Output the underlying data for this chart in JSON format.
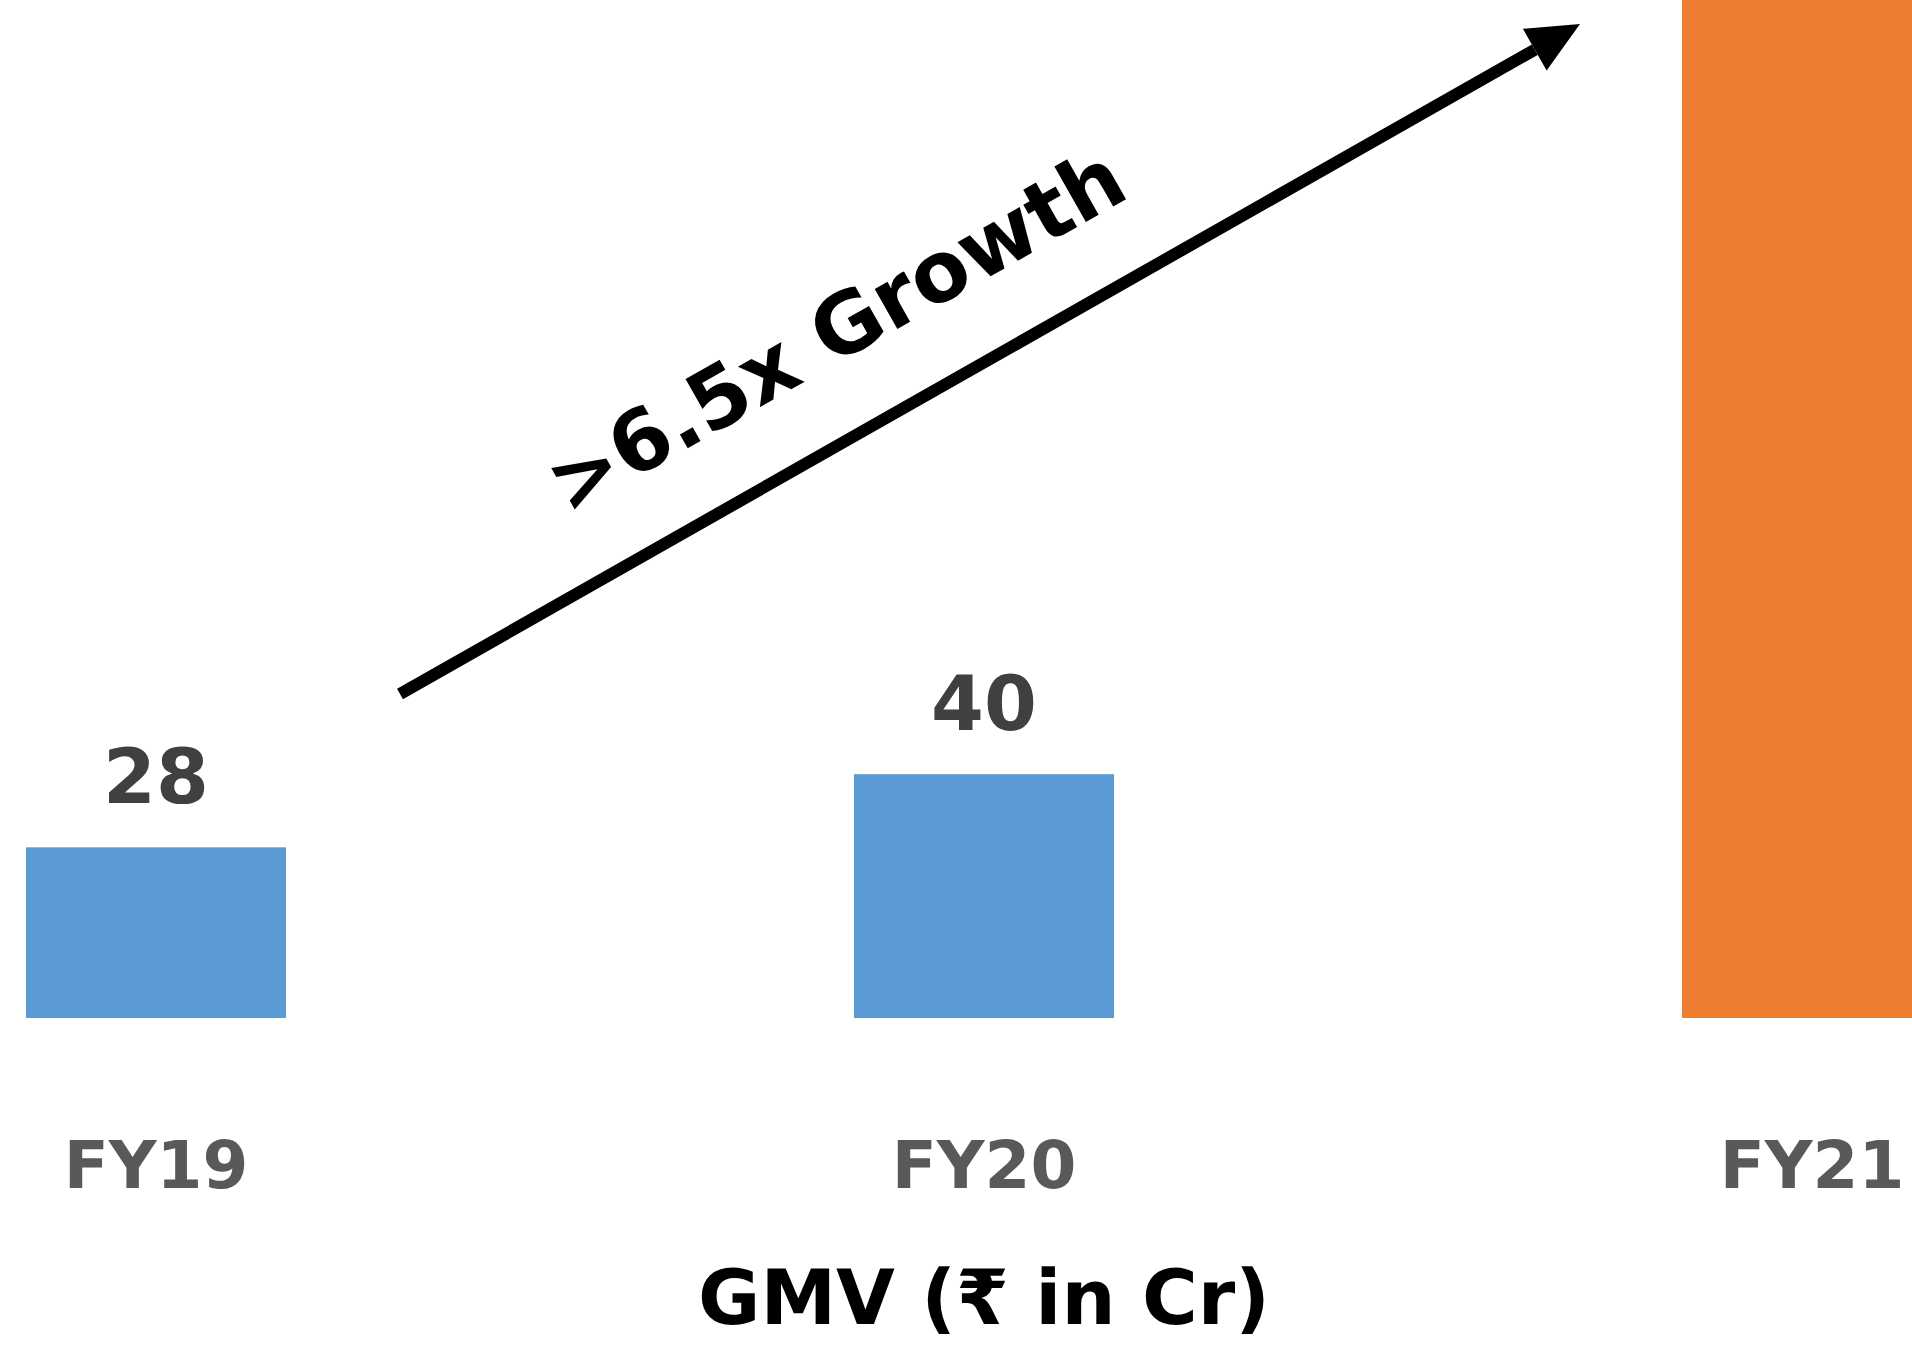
{
  "chart_data": {
    "type": "bar",
    "xlabel": "GMV (₹ in Cr)",
    "categories": [
      "FY19",
      "FY20",
      "FY21"
    ],
    "values": [
      28,
      40,
      167
    ],
    "colors": [
      "#5b9bd5",
      "#5b9bd5",
      "#ed7d31"
    ],
    "value_labels": [
      "28",
      "40",
      null
    ],
    "annotations": [
      ">6.5x Growth"
    ]
  }
}
